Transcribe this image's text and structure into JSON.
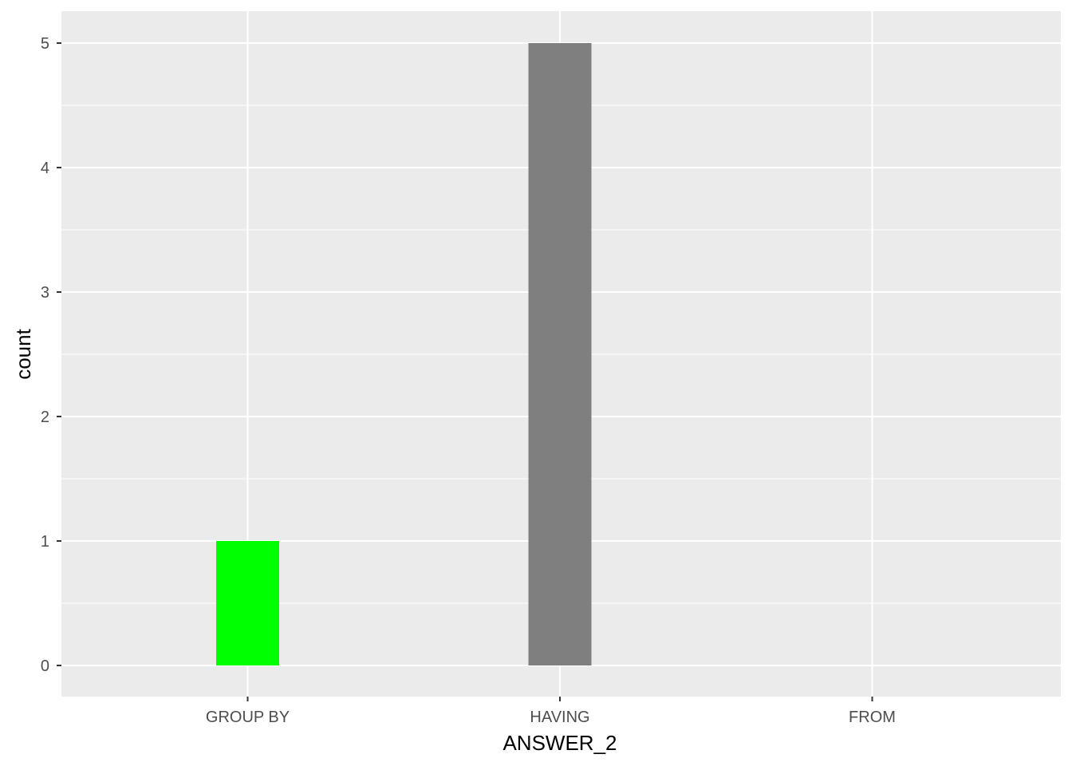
{
  "chart_data": {
    "type": "bar",
    "title": "",
    "xlabel": "ANSWER_2",
    "ylabel": "count",
    "categories": [
      "GROUP BY",
      "HAVING",
      "FROM"
    ],
    "values": [
      1,
      5,
      0
    ],
    "bar_colors": [
      "#00FF00",
      "#7F7F7F",
      "#7F7F7F"
    ],
    "ylim": [
      -0.25,
      5.25
    ],
    "yticks": [
      0,
      1,
      2,
      3,
      4,
      5
    ],
    "grid": true,
    "panel_background": "#EBEBEB",
    "grid_color": "#FFFFFF",
    "legend": "none"
  }
}
